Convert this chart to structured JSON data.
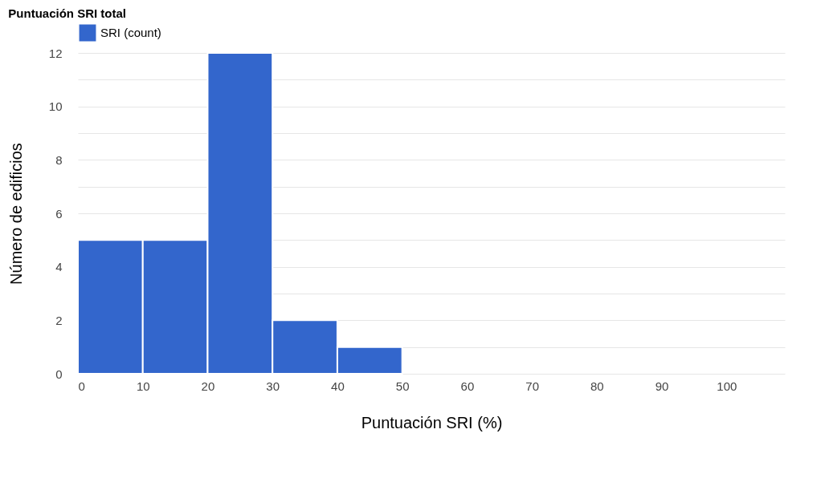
{
  "chart_data": {
    "type": "histogram",
    "title": "Puntuación SRI total",
    "xlabel": "Puntuación SRI (%)",
    "ylabel": "Número de edificios",
    "bins": [
      0,
      10,
      20,
      30,
      40,
      50
    ],
    "series": [
      {
        "name": "SRI (count)",
        "color": "#3366cc",
        "values": [
          5,
          5,
          12,
          2,
          1
        ]
      }
    ],
    "xlim": [
      0,
      109
    ],
    "xticks": [
      0,
      10,
      20,
      30,
      40,
      50,
      60,
      70,
      80,
      90,
      100
    ],
    "ylim": [
      0,
      12
    ],
    "yticks": [
      0,
      {
        "value": 1,
        "label": null
      },
      2,
      {
        "value": 3,
        "label": null
      },
      4,
      {
        "value": 5,
        "label": null
      },
      6,
      {
        "value": 7,
        "label": null
      },
      8,
      {
        "value": 9,
        "label": null
      },
      10,
      {
        "value": 11,
        "label": null
      },
      12
    ],
    "grid": "y",
    "legend": "top left"
  }
}
